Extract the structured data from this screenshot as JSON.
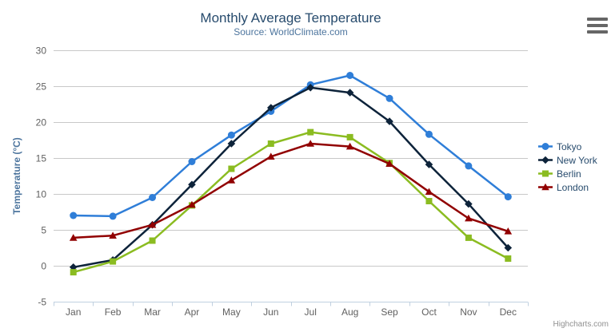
{
  "chart": {
    "title": "Monthly Average Temperature",
    "subtitle": "Source: WorldClimate.com",
    "credits": "Highcharts.com"
  },
  "chart_data": {
    "type": "line",
    "title": "Monthly Average Temperature",
    "subtitle": "Source: WorldClimate.com",
    "categories": [
      "Jan",
      "Feb",
      "Mar",
      "Apr",
      "May",
      "Jun",
      "Jul",
      "Aug",
      "Sep",
      "Oct",
      "Nov",
      "Dec"
    ],
    "xlabel": "",
    "ylabel": "Temperature (°C)",
    "ylim": [
      -5,
      30
    ],
    "ytick_step": 5,
    "grid": "horizontal",
    "legend_position": "right-middle",
    "series": [
      {
        "name": "Tokyo",
        "color": "#2f7ed8",
        "marker": "circle",
        "values": [
          7.0,
          6.9,
          9.5,
          14.5,
          18.2,
          21.5,
          25.2,
          26.5,
          23.3,
          18.3,
          13.9,
          9.6
        ]
      },
      {
        "name": "New York",
        "color": "#0d233a",
        "marker": "diamond",
        "values": [
          -0.2,
          0.8,
          5.7,
          11.3,
          17.0,
          22.0,
          24.8,
          24.1,
          20.1,
          14.1,
          8.6,
          2.5
        ]
      },
      {
        "name": "Berlin",
        "color": "#8bbc21",
        "marker": "square",
        "values": [
          -0.9,
          0.6,
          3.5,
          8.4,
          13.5,
          17.0,
          18.6,
          17.9,
          14.3,
          9.0,
          3.9,
          1.0
        ]
      },
      {
        "name": "London",
        "color": "#910000",
        "marker": "triangle",
        "values": [
          3.9,
          4.2,
          5.7,
          8.5,
          11.9,
          15.2,
          17.0,
          16.6,
          14.2,
          10.3,
          6.6,
          4.8
        ]
      }
    ]
  },
  "colors": {
    "background": "#ffffff",
    "title": "#274b6d",
    "subtitle": "#4d759e",
    "axis_label": "#606060",
    "axis_title": "#4d759e",
    "axis_line": "#c0d0e0",
    "gridline": "#c8c8c8",
    "legend_text": "#274b6d",
    "credits": "#909090",
    "export_icon": "#666666"
  }
}
